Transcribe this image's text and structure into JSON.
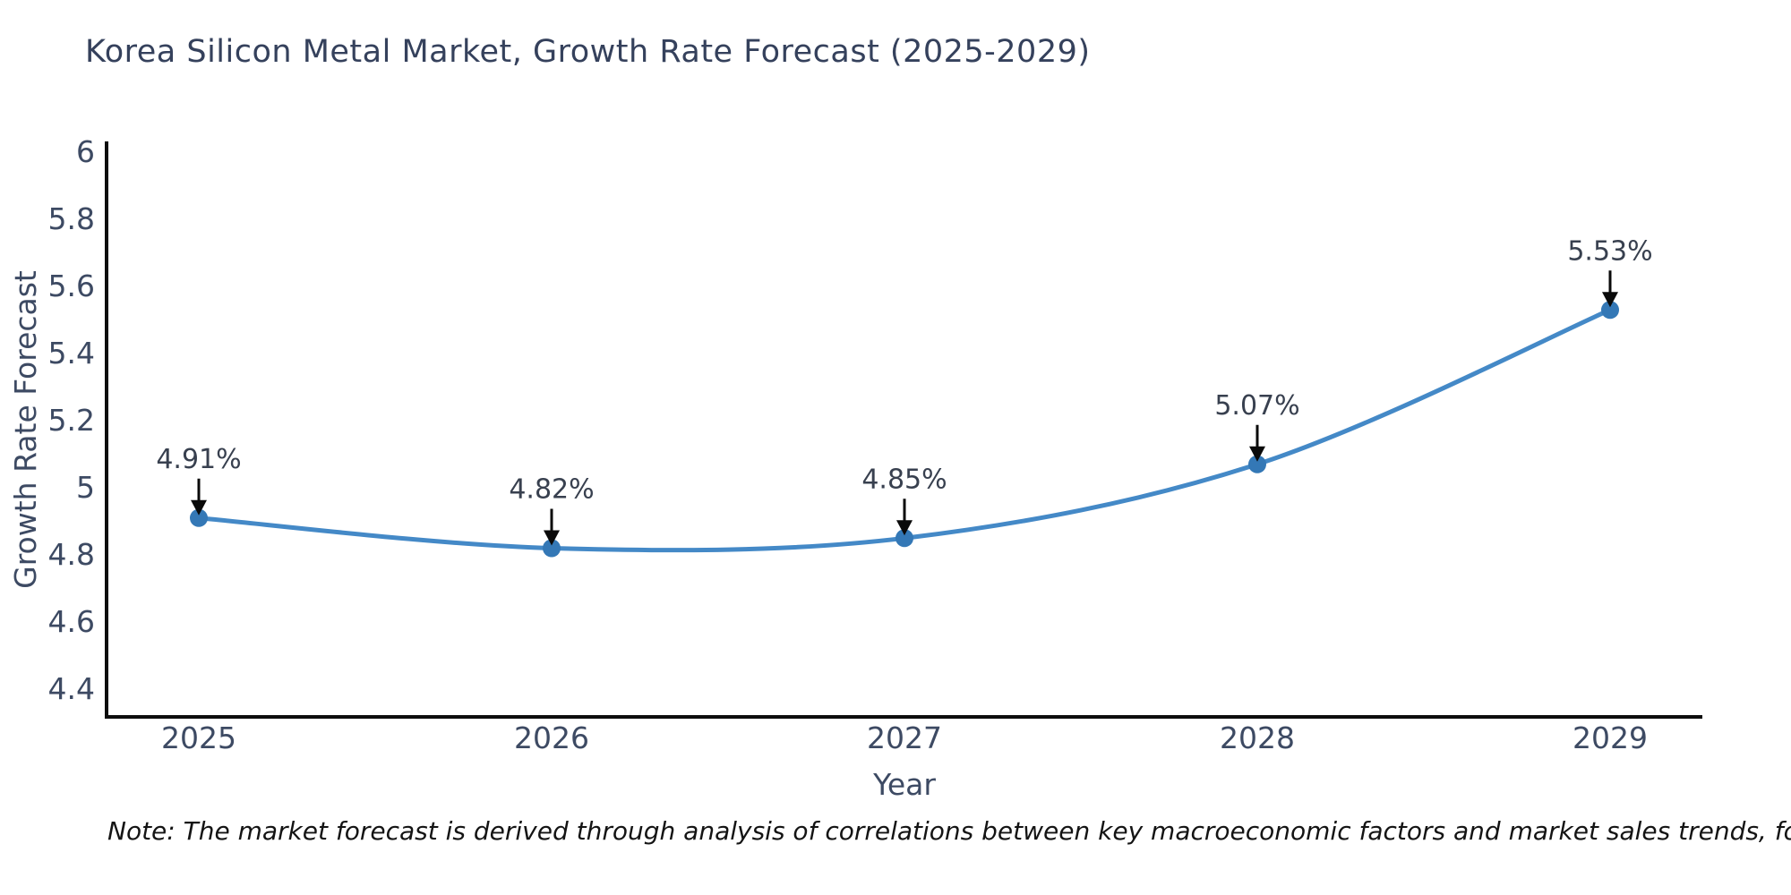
{
  "title": "Korea Silicon Metal Market, Growth Rate Forecast (2025-2029)",
  "note": "Note: The market forecast is derived through analysis of correlations between key macroeconomic factors and market sales trends, followed by predictive modeling to project future sales",
  "colors": {
    "background": "#ffffff",
    "title_text": "#35415c",
    "axis_text": "#3d4a63",
    "axis_line": "#0d0d0d",
    "series_line": "#4489c7",
    "marker_fill": "#3478b6",
    "annotation_text": "#38404f",
    "arrow": "#0a0a0a",
    "note_text": "#141414"
  },
  "chart_data": {
    "type": "line",
    "title": "Korea Silicon Metal Market, Growth Rate Forecast (2025-2029)",
    "xlabel": "Year",
    "ylabel": "Growth Rate Forecast",
    "categories": [
      "2025",
      "2026",
      "2027",
      "2028",
      "2029"
    ],
    "series": [
      {
        "name": "Growth Rate Forecast",
        "values": [
          4.91,
          4.82,
          4.85,
          5.07,
          5.53
        ]
      }
    ],
    "point_labels": [
      "4.91%",
      "4.82%",
      "4.85%",
      "5.07%",
      "5.53%"
    ],
    "y_ticks": [
      4.4,
      4.6,
      4.8,
      5,
      5.2,
      5.4,
      5.6,
      5.8,
      6
    ],
    "y_tick_labels": [
      "4.4",
      "4.6",
      "4.8",
      "5",
      "5.2",
      "5.4",
      "5.6",
      "5.8",
      "6"
    ],
    "ylim": [
      4.32,
      6.03
    ],
    "grid": false,
    "legend": "none",
    "marker": "circle",
    "line_style": "smooth",
    "annotations": "value labels with downward arrows above each point"
  }
}
